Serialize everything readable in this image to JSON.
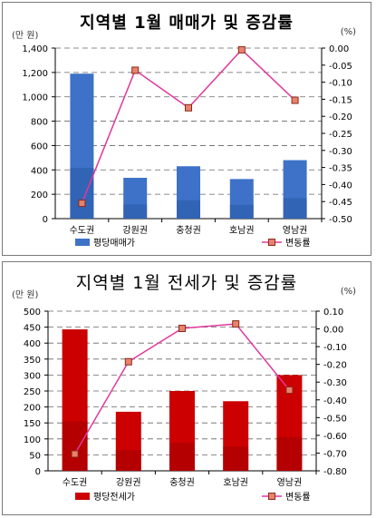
{
  "chart_data": [
    {
      "type": "bar",
      "title": "지역별 1월 매매가 및 증감률",
      "left_unit": "(만 원)",
      "right_unit": "(%)",
      "categories": [
        "수도권",
        "강원권",
        "충청권",
        "호남권",
        "영남권"
      ],
      "left_ticks": [
        "0",
        "200",
        "400",
        "600",
        "800",
        "1,000",
        "1,200",
        "1,400"
      ],
      "right_ticks": [
        "0.00",
        "-0.05",
        "-0.10",
        "-0.15",
        "-0.20",
        "-0.25",
        "-0.30",
        "-0.35",
        "-0.40",
        "-0.45",
        "-0.50"
      ],
      "ylim_left": [
        0,
        1400
      ],
      "ylim_right": [
        -0.5,
        0.0
      ],
      "bar_color": "#3d72c8",
      "bar_color_dark": "#2a5aa6",
      "line_color": "#e0389c",
      "marker_color": "#e8826e",
      "series": [
        {
          "name": "평당매매가",
          "axis": "left",
          "kind": "bar",
          "values": [
            1190,
            335,
            430,
            325,
            480
          ]
        },
        {
          "name": "변동률",
          "axis": "right",
          "kind": "line",
          "values": [
            -0.455,
            -0.065,
            -0.175,
            -0.005,
            -0.153
          ]
        }
      ],
      "grid": true,
      "legend": [
        "평당매매가",
        "변동률"
      ]
    },
    {
      "type": "bar",
      "title": "지역별 1월 전세가 및 증감률",
      "left_unit": "(만 원)",
      "right_unit": "(%)",
      "categories": [
        "수도권",
        "강원권",
        "충청권",
        "호남권",
        "영남권"
      ],
      "left_ticks": [
        "0",
        "50",
        "100",
        "150",
        "200",
        "250",
        "300",
        "350",
        "400",
        "450",
        "500"
      ],
      "right_ticks": [
        "0.10",
        "0.00",
        "-0.10",
        "-0.20",
        "-0.30",
        "-0.40",
        "-0.50",
        "-0.60",
        "-0.70",
        "-0.80"
      ],
      "ylim_left": [
        0,
        500
      ],
      "ylim_right": [
        -0.8,
        0.1
      ],
      "bar_color": "#cc0000",
      "bar_color_dark": "#a00000",
      "line_color": "#e0389c",
      "marker_color": "#e8826e",
      "series": [
        {
          "name": "평당전세가",
          "axis": "left",
          "kind": "bar",
          "values": [
            443,
            185,
            250,
            218,
            300
          ]
        },
        {
          "name": "변동률",
          "axis": "right",
          "kind": "line",
          "values": [
            -0.705,
            -0.185,
            0.003,
            0.028,
            -0.345
          ]
        }
      ],
      "grid": true,
      "legend": [
        "평당전세가",
        "변동률"
      ]
    }
  ]
}
